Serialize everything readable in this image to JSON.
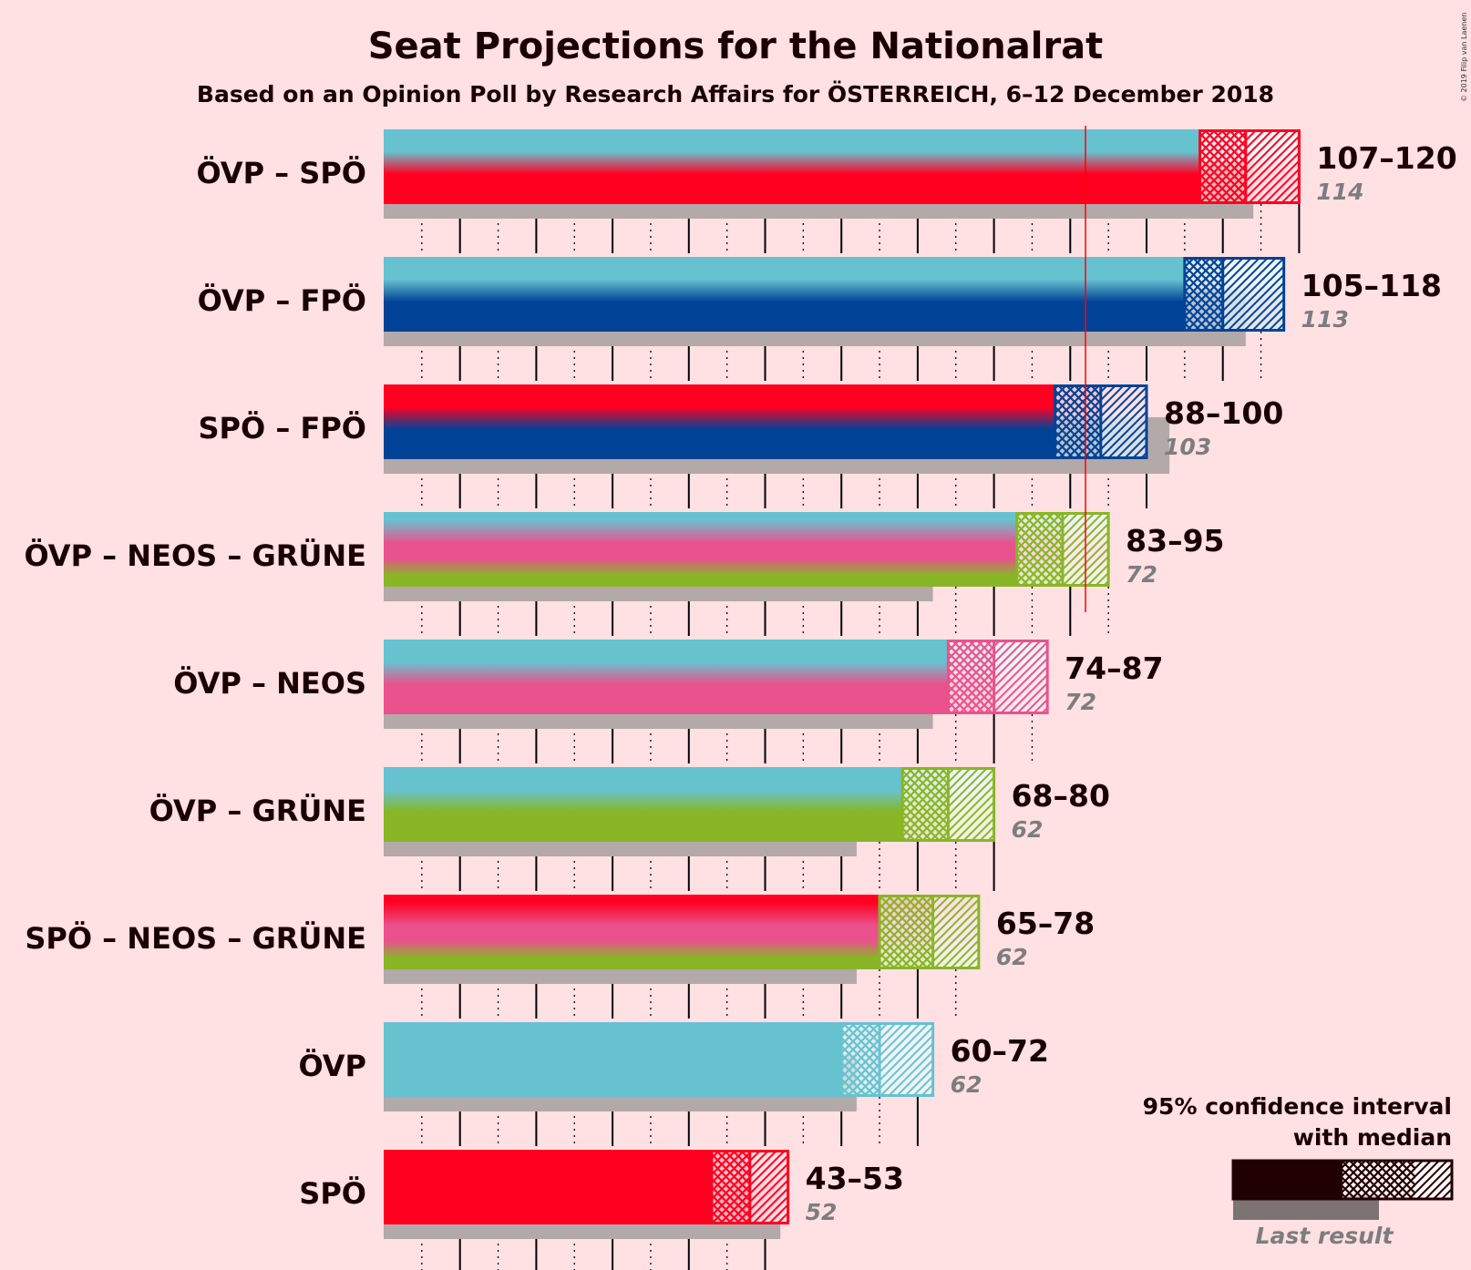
{
  "chart_data": {
    "type": "bar",
    "title": "Seat Projections for the Nationalrat",
    "subtitle": "Based on an Opinion Poll by Research Affairs for ÖSTERREICH, 6–12 December 2018",
    "copyright": "© 2019 Filip van Laenen",
    "majority": 92,
    "x_range": [
      0,
      120
    ],
    "rows": [
      {
        "label": "ÖVP – SPÖ",
        "low": 107,
        "median": 113,
        "high": 120,
        "range_text": "107–120",
        "last": 114,
        "last_text": "114",
        "colors": [
          "#67C2D0",
          "#FF0021"
        ]
      },
      {
        "label": "ÖVP – FPÖ",
        "low": 105,
        "median": 110,
        "high": 118,
        "range_text": "105–118",
        "last": 113,
        "last_text": "113",
        "colors": [
          "#67C2D0",
          "#004396"
        ]
      },
      {
        "label": "SPÖ – FPÖ",
        "low": 88,
        "median": 94,
        "high": 100,
        "range_text": "88–100",
        "last": 103,
        "last_text": "103",
        "colors": [
          "#FF0021",
          "#004396"
        ]
      },
      {
        "label": "ÖVP – NEOS – GRÜNE",
        "low": 83,
        "median": 89,
        "high": 95,
        "range_text": "83–95",
        "last": 72,
        "last_text": "72",
        "colors": [
          "#67C2D0",
          "#E9528C",
          "#88B626"
        ]
      },
      {
        "label": "ÖVP – NEOS",
        "low": 74,
        "median": 80,
        "high": 87,
        "range_text": "74–87",
        "last": 72,
        "last_text": "72",
        "colors": [
          "#67C2D0",
          "#E9528C"
        ]
      },
      {
        "label": "ÖVP – GRÜNE",
        "low": 68,
        "median": 74,
        "high": 80,
        "range_text": "68–80",
        "last": 62,
        "last_text": "62",
        "colors": [
          "#67C2D0",
          "#88B626"
        ]
      },
      {
        "label": "SPÖ – NEOS – GRÜNE",
        "low": 65,
        "median": 72,
        "high": 78,
        "range_text": "65–78",
        "last": 62,
        "last_text": "62",
        "colors": [
          "#FF0021",
          "#E9528C",
          "#88B626"
        ]
      },
      {
        "label": "ÖVP",
        "low": 60,
        "median": 65,
        "high": 72,
        "range_text": "60–72",
        "last": 62,
        "last_text": "62",
        "colors": [
          "#67C2D0"
        ]
      },
      {
        "label": "SPÖ",
        "low": 43,
        "median": 48,
        "high": 53,
        "range_text": "43–53",
        "last": 52,
        "last_text": "52",
        "colors": [
          "#FF0021"
        ]
      }
    ],
    "legend": {
      "line1": "95% confidence interval",
      "line2": "with median",
      "last_result": "Last result"
    }
  }
}
